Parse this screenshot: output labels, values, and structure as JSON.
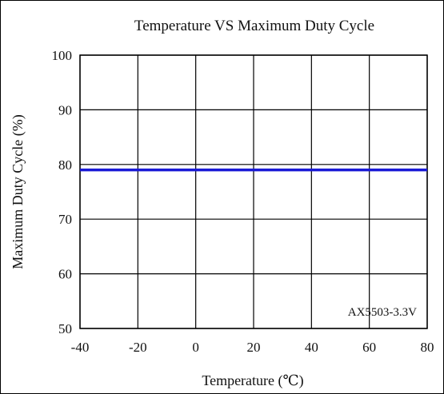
{
  "chart_data": {
    "type": "line",
    "title": "Temperature VS Maximum Duty Cycle",
    "xlabel": "Temperature (℃)",
    "ylabel": "Maximum Duty Cycle (%)",
    "xlim": [
      -40,
      80
    ],
    "ylim": [
      50,
      100
    ],
    "x_ticks": [
      -40,
      -20,
      0,
      20,
      40,
      60,
      80
    ],
    "y_ticks": [
      50,
      60,
      70,
      80,
      90,
      100
    ],
    "grid": true,
    "annotation": "AX5503-3.3V",
    "series": [
      {
        "color": "#1a1ad6",
        "x": [
          -40,
          80
        ],
        "y": [
          79,
          79
        ]
      }
    ]
  }
}
